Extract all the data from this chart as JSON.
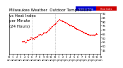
{
  "title": "Milwaukee Weather  Outdoor Temperature",
  "subtitle1": "vs Heat Index",
  "subtitle2": "per Minute",
  "subtitle3": "(24 Hours)",
  "bg_color": "#ffffff",
  "plot_bg": "#ffffff",
  "scatter_color": "#ff0000",
  "legend_label1": "Outdoor Temp",
  "legend_label2": "Heat Index",
  "legend_color1": "#0000cc",
  "legend_color2": "#cc0000",
  "ylim": [
    40,
    90
  ],
  "xlim": [
    0,
    1440
  ],
  "yticks": [
    45,
    50,
    55,
    60,
    65,
    70,
    75,
    80,
    85,
    90
  ],
  "vline1": 360,
  "vline2": 720,
  "title_fontsize": 4.0,
  "tick_fontsize": 2.8,
  "marker_size": 0.8,
  "dot_density": 0.05
}
